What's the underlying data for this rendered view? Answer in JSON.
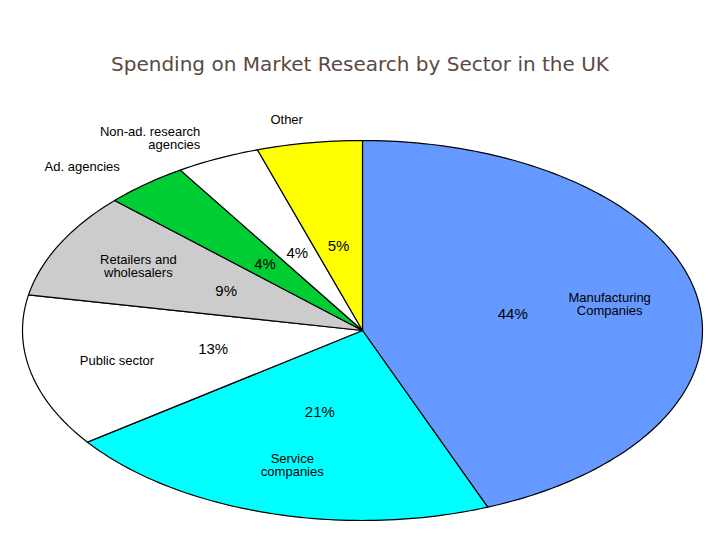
{
  "chart_data": {
    "type": "pie",
    "title": "Spending on Market Research by Sector in the UK",
    "categories": [
      "Manufacturing Companies",
      "Service companies",
      "Public sector",
      "Retailers and wholesalers",
      "Ad. agencies",
      "Non-ad. research agencies",
      "Other"
    ],
    "values": [
      44,
      21,
      13,
      9,
      4,
      4,
      5
    ],
    "value_labels": [
      "44%",
      "21%",
      "13%",
      "9%",
      "4%",
      "4%",
      "5%"
    ],
    "colors": [
      "#6699ff",
      "#00ffff",
      "#ffffff",
      "#cccccc",
      "#00cc33",
      "#ffffff",
      "#ffff00"
    ],
    "data_labels": true
  }
}
